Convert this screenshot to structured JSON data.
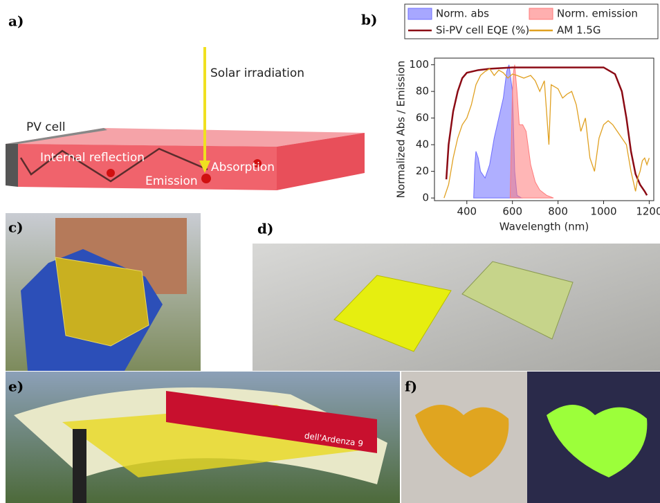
{
  "panels": {
    "a": {
      "label": "a)",
      "pv_cell": "PV cell",
      "internal_reflection": "Internal reflection",
      "emission": "Emission",
      "absorption": "Absorption",
      "solar": "Solar irradiation"
    },
    "b": {
      "label": "b)"
    },
    "c": {
      "label": "c)"
    },
    "d": {
      "label": "d)"
    },
    "e": {
      "label": "e)",
      "sign": "dell'Ardenza 9"
    },
    "f": {
      "label": "f)"
    }
  },
  "chart_data": {
    "type": "line",
    "x_label": "Wavelength (nm)",
    "y_label": "Normalized Abs / Emission",
    "xlim": [
      258,
      1220
    ],
    "ylim": [
      -2,
      105
    ],
    "xticks": [
      400,
      600,
      800,
      1000,
      1200
    ],
    "yticks": [
      0,
      20,
      40,
      60,
      80,
      100
    ],
    "series": [
      {
        "name": "Norm. abs",
        "color": "#6d6dff",
        "fill": true,
        "x": [
          430,
          435,
          440,
          450,
          460,
          480,
          500,
          520,
          540,
          560,
          575,
          585,
          600,
          610,
          620,
          640
        ],
        "values": [
          0,
          25,
          35,
          30,
          20,
          15,
          25,
          45,
          60,
          75,
          95,
          100,
          80,
          20,
          2,
          0
        ]
      },
      {
        "name": "Norm. emission",
        "color": "#ff7a7a",
        "fill": true,
        "x": [
          590,
          595,
          600,
          605,
          610,
          620,
          630,
          645,
          660,
          680,
          700,
          720,
          750,
          780
        ],
        "values": [
          0,
          40,
          80,
          95,
          100,
          80,
          55,
          55,
          50,
          25,
          12,
          6,
          2,
          0
        ]
      },
      {
        "name": "Si-PV cell EQE (%)",
        "color": "#8b0a14",
        "fill": false,
        "x": [
          310,
          320,
          340,
          360,
          380,
          400,
          450,
          500,
          600,
          700,
          800,
          900,
          1000,
          1050,
          1080,
          1100,
          1120,
          1140,
          1160,
          1180,
          1190
        ],
        "values": [
          14,
          40,
          65,
          80,
          90,
          94,
          96,
          97,
          98,
          98,
          98,
          98,
          98,
          93,
          80,
          60,
          35,
          18,
          10,
          5,
          2
        ]
      },
      {
        "name": "AM 1.5G",
        "color": "#e0a020",
        "fill": false,
        "x": [
          300,
          320,
          340,
          360,
          380,
          400,
          420,
          440,
          460,
          480,
          500,
          520,
          540,
          560,
          580,
          600,
          620,
          650,
          680,
          700,
          720,
          740,
          760,
          770,
          800,
          820,
          840,
          860,
          880,
          900,
          920,
          940,
          960,
          980,
          1000,
          1020,
          1040,
          1060,
          1080,
          1100,
          1120,
          1140,
          1150,
          1160,
          1170,
          1180,
          1190,
          1200
        ],
        "values": [
          0,
          10,
          30,
          45,
          55,
          60,
          70,
          85,
          92,
          95,
          97,
          92,
          96,
          94,
          90,
          93,
          92,
          90,
          92,
          88,
          80,
          88,
          40,
          85,
          82,
          75,
          78,
          80,
          70,
          50,
          60,
          30,
          20,
          45,
          55,
          58,
          55,
          50,
          45,
          40,
          20,
          5,
          15,
          20,
          28,
          30,
          25,
          30
        ]
      }
    ]
  }
}
